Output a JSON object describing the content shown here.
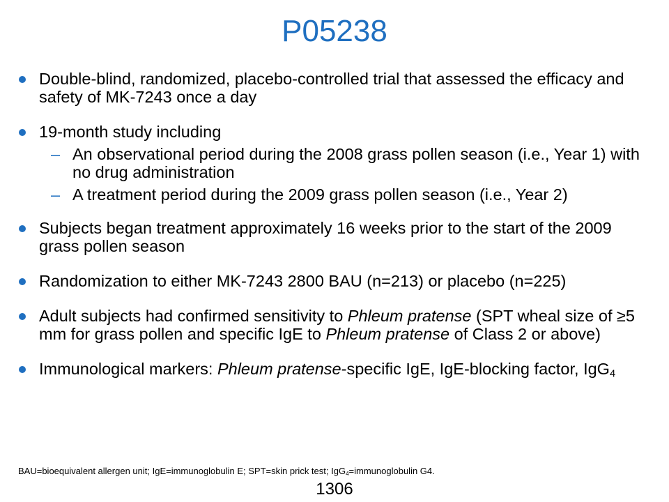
{
  "slide": {
    "title": "P05238",
    "accent_color": "#1f6fc0",
    "bullets": [
      {
        "text": "Double-blind, randomized, placebo-controlled trial that assessed the efficacy and safety of MK-7243 once a day"
      },
      {
        "text": "19-month study including",
        "subs": [
          "An observational period during the 2008 grass pollen season (i.e., Year 1) with no drug administration",
          "A treatment period during the 2009 grass pollen season (i.e., Year 2)"
        ]
      },
      {
        "text": "Subjects began treatment approximately 16 weeks prior to the start of the 2009 grass pollen season"
      },
      {
        "text": "Randomization to either MK-7243 2800 BAU (n=213) or placebo (n=225)"
      },
      {
        "part1": "Adult subjects had confirmed sensitivity to ",
        "italic1": "Phleum pratense",
        "part2": " (SPT wheal size of ≥5 mm for grass pollen and specific IgE to ",
        "italic2": "Phleum pratense",
        "part3": " of Class 2 or above)"
      },
      {
        "part1": "Immunological markers: ",
        "italic1": "Phleum pratense",
        "part2": "-specific IgE, IgE-blocking factor, IgG",
        "subscript": "4"
      }
    ],
    "footnote": {
      "part1": "BAU=bioequivalent allergen unit; IgE=immunoglobulin  E; SPT=skin prick test; IgG",
      "subscript": "4",
      "part2": "=immunoglobulin  G4."
    },
    "page_number": "1306"
  }
}
